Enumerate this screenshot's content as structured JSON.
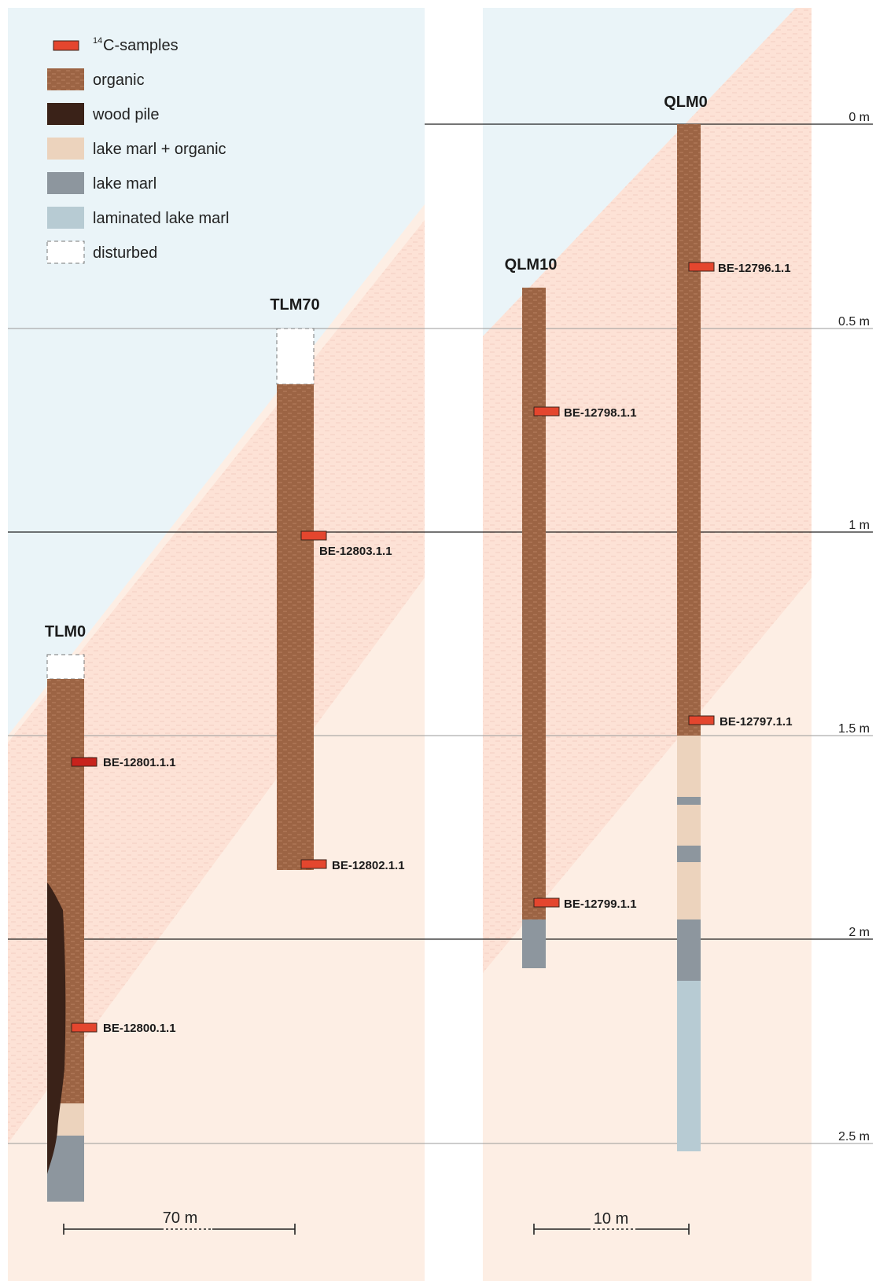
{
  "legend": {
    "c14_sup": "14",
    "c14_label": "C-samples",
    "organic": "organic",
    "wood_pile": "wood pile",
    "lake_marl_organic": "lake marl + organic",
    "lake_marl": "lake marl",
    "laminated_lake_marl": "laminated lake marl",
    "disturbed": "disturbed"
  },
  "colors": {
    "sky": "#eaf4f8",
    "sediment_zone": "#fdeee4",
    "organic_zone": "#fde2d6",
    "organic": "#9c6444",
    "wood_pile": "#3a2218",
    "lake_marl_organic": "#ecd3bd",
    "lake_marl": "#8d969e",
    "laminated_lake_marl": "#b7cbd3",
    "sample": "#e4462e",
    "sample_dark": "#c8231c"
  },
  "depth_axis": {
    "labels": [
      "0 m",
      "0.5 m",
      "1 m",
      "1.5 m",
      "2 m",
      "2.5 m"
    ]
  },
  "cores": {
    "tlm0": {
      "title": "TLM0"
    },
    "tlm70": {
      "title": "TLM70"
    },
    "qlm10": {
      "title": "QLM10"
    },
    "qlm0": {
      "title": "QLM0"
    }
  },
  "samples": {
    "be12796": "BE-12796.1.1",
    "be12797": "BE-12797.1.1",
    "be12798": "BE-12798.1.1",
    "be12799": "BE-12799.1.1",
    "be12800": "BE-12800.1.1",
    "be12801": "BE-12801.1.1",
    "be12802": "BE-12802.1.1",
    "be12803": "BE-12803.1.1"
  },
  "scale_bars": {
    "left": "70 m",
    "right": "10 m"
  }
}
